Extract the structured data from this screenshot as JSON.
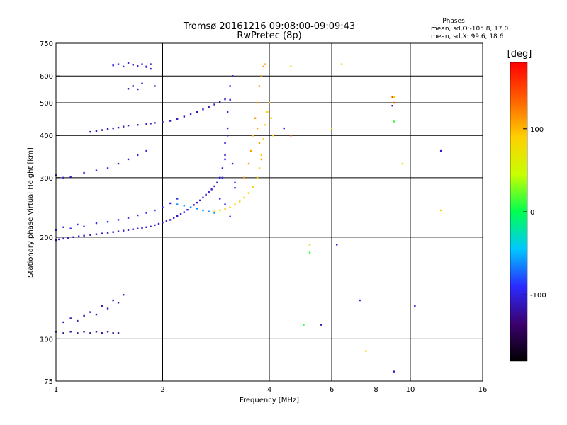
{
  "chart_data": {
    "type": "scatter",
    "title": "Tromsø 20161216 09:08:00-09:09:43",
    "subtitle": "RwPretec (8p)",
    "xlabel": "Frequency [MHz]",
    "ylabel": "Stationary phase Virtual Height [km]",
    "x_scale": "log",
    "y_scale": "log",
    "xlim": [
      1,
      16
    ],
    "ylim": [
      75,
      750
    ],
    "x_ticks": [
      1,
      2,
      4,
      6,
      8,
      10,
      16
    ],
    "y_ticks": [
      75,
      100,
      200,
      300,
      400,
      500,
      600,
      750
    ],
    "x_tick_labels": [
      "1",
      "2",
      "4",
      "6",
      "8",
      "10",
      "16"
    ],
    "y_tick_labels": [
      "75",
      "100",
      "200",
      "300",
      "400",
      "500",
      "600",
      "750"
    ],
    "x_grid": [
      2,
      4,
      6,
      8,
      10
    ],
    "y_grid": [
      100,
      200,
      300,
      400,
      500,
      600
    ],
    "grid": true,
    "legend": {
      "title": "Phases",
      "line1": "mean, sd,O:-105.8, 17.0",
      "line2": "mean, sd,X:  99.6, 18.6",
      "placement": "top-right"
    },
    "colorbar": {
      "label": "[deg]",
      "range": [
        -180,
        180
      ],
      "ticks": [
        100,
        0,
        -100
      ],
      "tick_labels": [
        "100",
        "0",
        "-100"
      ],
      "colors": [
        "#000000",
        "#3c006e",
        "#2a2aff",
        "#00c8ff",
        "#00ff50",
        "#c8ff00",
        "#ffd000",
        "#ff6000",
        "#ff0000"
      ]
    },
    "series": [
      {
        "phase": -105,
        "x": [
          1.0,
          1.02,
          1.05,
          1.08,
          1.12,
          1.16,
          1.2,
          1.25,
          1.3,
          1.35,
          1.4,
          1.45,
          1.5,
          1.55,
          1.6,
          1.65,
          1.7,
          1.75,
          1.8,
          1.85,
          1.9,
          1.95,
          2.0,
          2.05,
          2.1,
          2.15,
          2.2,
          2.25,
          2.3,
          2.35,
          2.4,
          2.45,
          2.5,
          2.55,
          2.6,
          2.65,
          2.7,
          2.75,
          2.8,
          2.85,
          2.9,
          2.95,
          3.0,
          3.05
        ],
        "y": [
          196,
          197,
          198,
          199,
          200,
          201,
          202,
          203,
          204,
          205,
          206,
          207,
          208,
          209,
          210,
          211,
          212,
          213,
          214,
          215,
          217,
          219,
          221,
          223,
          225,
          228,
          231,
          234,
          237,
          241,
          245,
          249,
          253,
          257,
          262,
          267,
          272,
          277,
          283,
          290,
          300,
          320,
          350,
          400
        ]
      },
      {
        "phase": -90,
        "x": [
          1.0,
          1.05,
          1.1,
          1.15,
          1.2,
          1.3,
          1.4,
          1.5,
          1.6,
          1.7,
          1.8,
          1.9,
          2.0,
          2.1,
          2.2
        ],
        "y": [
          210,
          214,
          212,
          218,
          215,
          220,
          222,
          225,
          228,
          232,
          236,
          240,
          245,
          252,
          260
        ]
      },
      {
        "phase": -110,
        "x": [
          1.25,
          1.3,
          1.35,
          1.4,
          1.45,
          1.5,
          1.55,
          1.6,
          1.7,
          1.8,
          1.85,
          1.9,
          2.0,
          2.1,
          2.2,
          2.3,
          2.4,
          2.5,
          2.6,
          2.7,
          2.8,
          2.9,
          3.0
        ],
        "y": [
          410,
          412,
          415,
          418,
          420,
          422,
          425,
          428,
          430,
          432,
          434,
          436,
          438,
          442,
          448,
          455,
          462,
          470,
          478,
          486,
          494,
          503,
          512
        ]
      },
      {
        "phase": -115,
        "x": [
          1.6,
          1.65,
          1.7,
          1.75,
          1.8,
          1.85,
          1.9
        ],
        "y": [
          550,
          560,
          548,
          570,
          640,
          650,
          560
        ]
      },
      {
        "phase": -100,
        "x": [
          1.45,
          1.5,
          1.55,
          1.6,
          1.65,
          1.7,
          1.75,
          1.8,
          1.85
        ],
        "y": [
          645,
          650,
          640,
          655,
          648,
          642,
          650,
          638,
          630
        ]
      },
      {
        "phase": -95,
        "x": [
          2.9,
          2.95,
          3.0,
          3.0,
          3.05,
          3.05,
          3.1,
          3.1,
          3.15,
          3.15,
          3.2,
          3.0,
          3.1,
          3.2
        ],
        "y": [
          260,
          300,
          340,
          380,
          420,
          470,
          510,
          560,
          600,
          330,
          290,
          250,
          230,
          280
        ]
      },
      {
        "phase": -60,
        "x": [
          2.2,
          2.3,
          2.4,
          2.5,
          2.6,
          2.7,
          2.8
        ],
        "y": [
          250,
          248,
          245,
          243,
          240,
          238,
          236
        ]
      },
      {
        "phase": 90,
        "x": [
          2.8,
          2.9,
          3.0,
          3.1,
          3.2,
          3.3,
          3.4,
          3.5,
          3.6,
          3.7,
          3.75,
          3.8,
          3.85,
          3.9,
          3.95,
          4.0,
          4.05,
          4.1
        ],
        "y": [
          238,
          240,
          242,
          245,
          250,
          255,
          262,
          270,
          282,
          300,
          320,
          350,
          390,
          430,
          470,
          500,
          450,
          400
        ]
      },
      {
        "phase": 110,
        "x": [
          3.4,
          3.5,
          3.55,
          3.6,
          3.65,
          3.7,
          3.75,
          3.8,
          3.85,
          3.9,
          3.7,
          3.75,
          3.8
        ],
        "y": [
          300,
          330,
          360,
          400,
          450,
          500,
          560,
          600,
          640,
          650,
          420,
          380,
          340
        ]
      },
      {
        "phase": -120,
        "x": [
          1.0,
          1.05,
          1.1,
          1.15,
          1.2,
          1.25,
          1.3,
          1.35,
          1.4,
          1.45,
          1.5
        ],
        "y": [
          105,
          104,
          105,
          104,
          105,
          104,
          105,
          104,
          105,
          104,
          104
        ]
      },
      {
        "phase": -110,
        "x": [
          1.05,
          1.1,
          1.15,
          1.2,
          1.25,
          1.3,
          1.35,
          1.4,
          1.45,
          1.5,
          1.55
        ],
        "y": [
          112,
          115,
          113,
          117,
          120,
          118,
          125,
          123,
          130,
          128,
          135
        ]
      },
      {
        "phase": -100,
        "x": [
          1.0,
          1.05,
          1.1,
          1.2,
          1.3,
          1.4,
          1.5,
          1.6,
          1.7,
          1.8
        ],
        "y": [
          305,
          300,
          302,
          310,
          315,
          320,
          330,
          340,
          350,
          360
        ]
      },
      {
        "phase": -105,
        "x": [
          4.4,
          5.6,
          6.2,
          7.2,
          8.9,
          9.0,
          10.3,
          12.2
        ],
        "y": [
          420,
          110,
          190,
          130,
          490,
          80,
          125,
          360
        ]
      },
      {
        "phase": 80,
        "x": [
          4.6,
          5.2,
          6.0,
          6.4,
          7.5,
          9.0,
          9.5,
          12.2
        ],
        "y": [
          640,
          190,
          420,
          650,
          92,
          520,
          330,
          240
        ]
      },
      {
        "phase": 10,
        "x": [
          5.2,
          9.0,
          5.0
        ],
        "y": [
          180,
          440,
          110
        ]
      },
      {
        "phase": 140,
        "x": [
          8.9,
          9.0,
          4.6
        ],
        "y": [
          520,
          500,
          400
        ]
      }
    ]
  }
}
